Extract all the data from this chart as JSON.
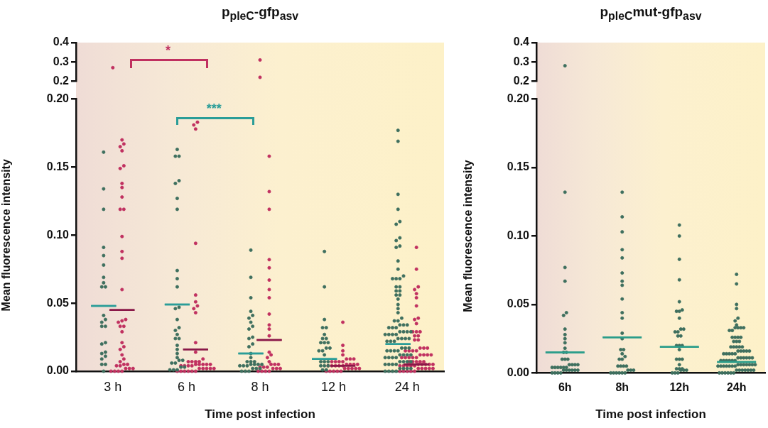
{
  "chart_data": [
    {
      "type": "scatter",
      "title": "p$_{pleC}$-gfp$_{asv}$",
      "categories": [
        "3 h",
        "6 h",
        "8 h",
        "12 h",
        "24 h"
      ],
      "ylim": [
        0.2,
        0.4
      ],
      "yticks": [
        0.2,
        0.3,
        0.4
      ],
      "tick_labels": "y",
      "marker": "circle",
      "grid": false,
      "legend": false,
      "annotations": [
        "*"
      ],
      "series": [
        {
          "color": "#c03060",
          "x": [
            "3 h",
            "8 h",
            "8 h"
          ],
          "values": [
            0.27,
            0.31,
            0.22
          ]
        }
      ]
    },
    {
      "type": "scatter",
      "xlabel": "Time post infection",
      "ylabel": "Mean fluorescence intensity",
      "categories": [
        "3 h",
        "6 h",
        "8 h",
        "12 h",
        "24 h"
      ],
      "ylim": [
        0,
        0.2
      ],
      "yticks": [
        {
          "value": 0,
          "label": "0.00"
        },
        {
          "value": 0.05,
          "label": "0.05"
        },
        {
          "value": 0.1,
          "label": "0.10"
        },
        {
          "value": 0.15,
          "label": "0.15"
        },
        {
          "value": 0.2,
          "label": "0.20"
        }
      ],
      "marker": "circle",
      "grid": false,
      "legend": false,
      "annotations": [
        "***"
      ],
      "series": [
        {
          "color": "#3e6f5e",
          "x": [
            "3 h",
            "3 h",
            "3 h",
            "3 h",
            "3 h",
            "3 h",
            "3 h",
            "3 h",
            "3 h",
            "3 h",
            "3 h",
            "3 h",
            "3 h",
            "3 h",
            "3 h",
            "3 h",
            "3 h",
            "3 h",
            "3 h",
            "3 h",
            "3 h",
            "3 h",
            "3 h",
            "3 h",
            "6 h",
            "6 h",
            "6 h",
            "6 h",
            "6 h",
            "6 h",
            "6 h",
            "6 h",
            "6 h",
            "6 h",
            "6 h",
            "6 h",
            "6 h",
            "6 h",
            "6 h",
            "6 h",
            "6 h",
            "6 h",
            "6 h",
            "6 h",
            "6 h",
            "6 h",
            "6 h",
            "6 h",
            "6 h",
            "6 h",
            "6 h",
            "6 h",
            "6 h",
            "6 h",
            "6 h",
            "8 h",
            "8 h",
            "8 h",
            "8 h",
            "8 h",
            "8 h",
            "8 h",
            "8 h",
            "8 h",
            "8 h",
            "8 h",
            "8 h",
            "8 h",
            "8 h",
            "8 h",
            "8 h",
            "8 h",
            "8 h",
            "8 h",
            "8 h",
            "8 h",
            "8 h",
            "8 h",
            "8 h",
            "8 h",
            "8 h",
            "8 h",
            "8 h",
            "8 h",
            "8 h",
            "8 h",
            "12 h",
            "12 h",
            "12 h",
            "12 h",
            "12 h",
            "12 h",
            "12 h",
            "12 h",
            "12 h",
            "12 h",
            "12 h",
            "12 h",
            "12 h",
            "12 h",
            "12 h",
            "12 h",
            "12 h",
            "12 h",
            "12 h",
            "12 h",
            "12 h",
            "12 h",
            "12 h",
            "12 h",
            "24 h",
            "24 h",
            "24 h",
            "24 h",
            "24 h",
            "24 h",
            "24 h",
            "24 h",
            "24 h",
            "24 h",
            "24 h",
            "24 h",
            "24 h",
            "24 h",
            "24 h",
            "24 h",
            "24 h",
            "24 h",
            "24 h",
            "24 h",
            "24 h",
            "24 h",
            "24 h",
            "24 h",
            "24 h",
            "24 h",
            "24 h",
            "24 h",
            "24 h",
            "24 h",
            "24 h",
            "24 h",
            "24 h",
            "24 h",
            "24 h",
            "24 h",
            "24 h",
            "24 h",
            "24 h",
            "24 h",
            "24 h",
            "24 h",
            "24 h",
            "24 h",
            "24 h",
            "24 h",
            "24 h",
            "24 h",
            "24 h",
            "24 h",
            "24 h",
            "24 h",
            "24 h",
            "24 h",
            "24 h",
            "24 h",
            "24 h",
            "24 h",
            "24 h",
            "24 h",
            "24 h",
            "24 h",
            "24 h",
            "24 h",
            "24 h",
            "24 h",
            "24 h",
            "24 h",
            "24 h",
            "24 h",
            "24 h",
            "24 h",
            "24 h",
            "24 h",
            "24 h",
            "24 h",
            "24 h",
            "24 h",
            "24 h",
            "24 h",
            "24 h"
          ],
          "values": [
            0.161,
            0.134,
            0.119,
            0.091,
            0.085,
            0.078,
            0.069,
            0.065,
            0.062,
            0.062,
            0.041,
            0.038,
            0.036,
            0.033,
            0.033,
            0.021,
            0.02,
            0.014,
            0.013,
            0.011,
            0.009,
            0.005,
            0.005,
            0,
            0.163,
            0.158,
            0.158,
            0.14,
            0.138,
            0.127,
            0.119,
            0.074,
            0.068,
            0.062,
            0.047,
            0.046,
            0.038,
            0.032,
            0.03,
            0.027,
            0.024,
            0.024,
            0.019,
            0.016,
            0.013,
            0.01,
            0.008,
            0.008,
            0.006,
            0.006,
            0.003,
            0.003,
            0.001,
            0.001,
            0.001,
            0.089,
            0.069,
            0.054,
            0.044,
            0.041,
            0.039,
            0.036,
            0.033,
            0.031,
            0.025,
            0.024,
            0.02,
            0.018,
            0.013,
            0.01,
            0.007,
            0.007,
            0.007,
            0.005,
            0.005,
            0.005,
            0.005,
            0.004,
            0.004,
            0.004,
            0.002,
            0.002,
            0.002,
            0,
            0,
            0,
            0.088,
            0.062,
            0.038,
            0.032,
            0.032,
            0.027,
            0.024,
            0.024,
            0.021,
            0.021,
            0.021,
            0.017,
            0.017,
            0.015,
            0.015,
            0.012,
            0.007,
            0.007,
            0.007,
            0.004,
            0.004,
            0.004,
            0.001,
            0.001,
            0.177,
            0.169,
            0.13,
            0.119,
            0.11,
            0.108,
            0.098,
            0.096,
            0.092,
            0.091,
            0.081,
            0.075,
            0.07,
            0.068,
            0.068,
            0.068,
            0.062,
            0.062,
            0.059,
            0.059,
            0.056,
            0.056,
            0.053,
            0.049,
            0.046,
            0.043,
            0.039,
            0.037,
            0.037,
            0.034,
            0.034,
            0.034,
            0.032,
            0.032,
            0.032,
            0.029,
            0.029,
            0.029,
            0.029,
            0.027,
            0.027,
            0.027,
            0.027,
            0.024,
            0.024,
            0.024,
            0.024,
            0.022,
            0.022,
            0.022,
            0.017,
            0.017,
            0.017,
            0.015,
            0.015,
            0.015,
            0.015,
            0.012,
            0.012,
            0.012,
            0.012,
            0.01,
            0.01,
            0.01,
            0.01,
            0.007,
            0.007,
            0.007,
            0.007,
            0.005,
            0.005,
            0.005,
            0.005,
            0.002,
            0.002,
            0.002,
            0.002,
            0,
            0,
            0,
            0
          ]
        },
        {
          "color": "#c03060",
          "x": [
            "3 h",
            "3 h",
            "3 h",
            "3 h",
            "3 h",
            "3 h",
            "3 h",
            "3 h",
            "3 h",
            "3 h",
            "3 h",
            "3 h",
            "3 h",
            "3 h",
            "3 h",
            "3 h",
            "3 h",
            "3 h",
            "3 h",
            "3 h",
            "3 h",
            "3 h",
            "3 h",
            "3 h",
            "3 h",
            "3 h",
            "3 h",
            "3 h",
            "3 h",
            "3 h",
            "3 h",
            "3 h",
            "3 h",
            "3 h",
            "3 h",
            "3 h",
            "3 h",
            "3 h",
            "6 h",
            "6 h",
            "6 h",
            "6 h",
            "6 h",
            "6 h",
            "6 h",
            "6 h",
            "6 h",
            "6 h",
            "6 h",
            "6 h",
            "6 h",
            "6 h",
            "6 h",
            "6 h",
            "6 h",
            "6 h",
            "6 h",
            "6 h",
            "6 h",
            "6 h",
            "6 h",
            "6 h",
            "6 h",
            "6 h",
            "6 h",
            "6 h",
            "6 h",
            "6 h",
            "6 h",
            "6 h",
            "6 h",
            "6 h",
            "6 h",
            "6 h",
            "8 h",
            "8 h",
            "8 h",
            "8 h",
            "8 h",
            "8 h",
            "8 h",
            "8 h",
            "8 h",
            "8 h",
            "8 h",
            "8 h",
            "8 h",
            "8 h",
            "8 h",
            "8 h",
            "8 h",
            "8 h",
            "8 h",
            "8 h",
            "8 h",
            "8 h",
            "8 h",
            "8 h",
            "8 h",
            "8 h",
            "8 h",
            "8 h",
            "8 h",
            "12 h",
            "12 h",
            "12 h",
            "12 h",
            "12 h",
            "12 h",
            "12 h",
            "12 h",
            "12 h",
            "12 h",
            "12 h",
            "12 h",
            "12 h",
            "12 h",
            "12 h",
            "12 h",
            "12 h",
            "12 h",
            "12 h",
            "12 h",
            "12 h",
            "12 h",
            "12 h",
            "12 h",
            "12 h",
            "12 h",
            "12 h",
            "12 h",
            "12 h",
            "12 h",
            "24 h",
            "24 h",
            "24 h",
            "24 h",
            "24 h",
            "24 h",
            "24 h",
            "24 h",
            "24 h",
            "24 h",
            "24 h",
            "24 h",
            "24 h",
            "24 h",
            "24 h",
            "24 h",
            "24 h",
            "24 h",
            "24 h",
            "24 h",
            "24 h",
            "24 h",
            "24 h",
            "24 h",
            "24 h",
            "24 h",
            "24 h",
            "24 h",
            "24 h",
            "24 h",
            "24 h",
            "24 h",
            "24 h",
            "24 h",
            "24 h",
            "24 h",
            "24 h",
            "24 h",
            "24 h",
            "24 h",
            "24 h",
            "24 h",
            "24 h",
            "24 h",
            "24 h",
            "24 h",
            "24 h",
            "24 h",
            "24 h",
            "24 h",
            "24 h",
            "24 h",
            "24 h",
            "24 h",
            "24 h",
            "24 h",
            "24 h",
            "24 h"
          ],
          "values": [
            0.17,
            0.167,
            0.165,
            0.162,
            0.151,
            0.149,
            0.138,
            0.135,
            0.128,
            0.119,
            0.119,
            0.099,
            0.088,
            0.083,
            0.06,
            0.038,
            0.037,
            0.036,
            0.033,
            0.033,
            0.029,
            0.021,
            0.018,
            0.016,
            0.012,
            0.009,
            0.007,
            0.005,
            0.005,
            0.004,
            0.004,
            0.002,
            0.002,
            0.002,
            0,
            0,
            0,
            0,
            0.183,
            0.181,
            0.178,
            0.094,
            0.056,
            0.051,
            0.048,
            0.046,
            0.043,
            0.021,
            0.014,
            0.009,
            0.007,
            0.007,
            0.007,
            0.007,
            0.005,
            0.005,
            0.005,
            0.005,
            0.005,
            0.004,
            0.004,
            0.004,
            0.004,
            0.002,
            0.002,
            0.002,
            0.002,
            0.002,
            0,
            0,
            0,
            0,
            0,
            0,
            0.158,
            0.132,
            0.119,
            0.082,
            0.076,
            0.067,
            0.06,
            0.054,
            0.042,
            0.034,
            0.031,
            0.026,
            0.014,
            0.012,
            0.01,
            0.007,
            0.005,
            0.005,
            0.005,
            0.003,
            0.003,
            0.003,
            0.002,
            0.002,
            0.002,
            0,
            0,
            0,
            0,
            0.036,
            0.019,
            0.015,
            0.012,
            0.009,
            0.009,
            0.009,
            0.007,
            0.007,
            0.007,
            0.007,
            0.005,
            0.005,
            0.005,
            0.005,
            0.004,
            0.004,
            0.004,
            0.004,
            0.004,
            0.002,
            0.002,
            0.002,
            0.002,
            0.002,
            0,
            0,
            0,
            0,
            0,
            0.091,
            0.075,
            0.062,
            0.06,
            0.057,
            0.054,
            0.048,
            0.039,
            0.038,
            0.035,
            0.029,
            0.029,
            0.029,
            0.026,
            0.026,
            0.023,
            0.023,
            0.017,
            0.017,
            0.017,
            0.015,
            0.015,
            0.015,
            0.015,
            0.012,
            0.012,
            0.012,
            0.012,
            0.01,
            0.01,
            0.01,
            0.01,
            0.01,
            0.007,
            0.007,
            0.007,
            0.007,
            0.007,
            0.005,
            0.005,
            0.005,
            0.005,
            0.005,
            0.004,
            0.004,
            0.004,
            0.004,
            0.004,
            0.002,
            0.002,
            0.002,
            0.002,
            0.002,
            0,
            0,
            0,
            0,
            0
          ]
        },
        {
          "type": "box",
          "color": "#2a9d98",
          "boxes": [
            {
              "low": 0.048,
              "q1": 0.048,
              "median": 0.048,
              "q3": 0.048,
              "high": 0.048
            },
            {
              "low": 0.049,
              "q1": 0.049,
              "median": 0.049,
              "q3": 0.049,
              "high": 0.049
            },
            {
              "low": 0.013,
              "q1": 0.013,
              "median": 0.013,
              "q3": 0.013,
              "high": 0.013
            },
            {
              "low": 0.009,
              "q1": 0.009,
              "median": 0.009,
              "q3": 0.009,
              "high": 0.009
            },
            {
              "low": 0.02,
              "q1": 0.02,
              "median": 0.02,
              "q3": 0.02,
              "high": 0.02
            }
          ]
        },
        {
          "type": "box",
          "color": "#8a1848",
          "boxes": [
            {
              "low": 0.045,
              "q1": 0.045,
              "median": 0.045,
              "q3": 0.045,
              "high": 0.045
            },
            {
              "low": 0.016,
              "q1": 0.016,
              "median": 0.016,
              "q3": 0.016,
              "high": 0.016
            },
            {
              "low": 0.023,
              "q1": 0.023,
              "median": 0.023,
              "q3": 0.023,
              "high": 0.023
            },
            {
              "low": 0.004,
              "q1": 0.004,
              "median": 0.004,
              "q3": 0.004,
              "high": 0.004
            },
            {
              "low": 0.005,
              "q1": 0.005,
              "median": 0.005,
              "q3": 0.005,
              "high": 0.005
            }
          ]
        }
      ]
    },
    {
      "type": "scatter",
      "title": "p$_{pleC}$mut-gfp$_{asv}$",
      "categories": [
        "6h",
        "8h",
        "12h",
        "24h"
      ],
      "ylim": [
        0.2,
        0.4
      ],
      "yticks": [
        0.2,
        0.3,
        0.4
      ],
      "tick_labels": "y",
      "marker": "circle",
      "grid": false,
      "legend": false,
      "series": [
        {
          "color": "#3e6f5e",
          "x": [
            "6h"
          ],
          "values": [
            0.28
          ]
        }
      ]
    },
    {
      "type": "scatter",
      "xlabel": "Time post infection",
      "ylabel": "Mean fluorescence intensity",
      "categories": [
        "6h",
        "8h",
        "12h",
        "24h"
      ],
      "ylim": [
        0,
        0.2
      ],
      "yticks": [
        {
          "value": 0,
          "label": "0.00"
        },
        {
          "value": 0.05,
          "label": "0.05"
        },
        {
          "value": 0.1,
          "label": "0.10"
        },
        {
          "value": 0.15,
          "label": "0.15"
        },
        {
          "value": 0.2,
          "label": "0.20"
        }
      ],
      "marker": "circle",
      "grid": false,
      "legend": false,
      "series": [
        {
          "color": "#3e6f5e",
          "x": [
            "6h",
            "6h",
            "6h",
            "6h",
            "6h",
            "6h",
            "6h",
            "6h",
            "6h",
            "6h",
            "6h",
            "6h",
            "6h",
            "6h",
            "6h",
            "6h",
            "6h",
            "6h",
            "6h",
            "6h",
            "6h",
            "6h",
            "6h",
            "6h",
            "6h",
            "6h",
            "6h",
            "6h",
            "6h",
            "6h",
            "6h",
            "6h",
            "6h",
            "6h",
            "6h",
            "8h",
            "8h",
            "8h",
            "8h",
            "8h",
            "8h",
            "8h",
            "8h",
            "8h",
            "8h",
            "8h",
            "8h",
            "8h",
            "8h",
            "8h",
            "8h",
            "8h",
            "8h",
            "8h",
            "8h",
            "8h",
            "8h",
            "8h",
            "8h",
            "8h",
            "8h",
            "8h",
            "8h",
            "8h",
            "8h",
            "8h",
            "8h",
            "12h",
            "12h",
            "12h",
            "12h",
            "12h",
            "12h",
            "12h",
            "12h",
            "12h",
            "12h",
            "12h",
            "12h",
            "12h",
            "12h",
            "12h",
            "12h",
            "12h",
            "12h",
            "12h",
            "12h",
            "12h",
            "12h",
            "12h",
            "12h",
            "12h",
            "12h",
            "12h",
            "12h",
            "12h",
            "12h",
            "12h",
            "12h",
            "24h",
            "24h",
            "24h",
            "24h",
            "24h",
            "24h",
            "24h",
            "24h",
            "24h",
            "24h",
            "24h",
            "24h",
            "24h",
            "24h",
            "24h",
            "24h",
            "24h",
            "24h",
            "24h",
            "24h",
            "24h",
            "24h",
            "24h",
            "24h",
            "24h",
            "24h",
            "24h",
            "24h",
            "24h",
            "24h",
            "24h",
            "24h",
            "24h",
            "24h",
            "24h",
            "24h",
            "24h",
            "24h",
            "24h",
            "24h",
            "24h",
            "24h",
            "24h",
            "24h",
            "24h",
            "24h",
            "24h",
            "24h",
            "24h",
            "24h",
            "24h",
            "24h",
            "24h",
            "24h",
            "24h",
            "24h",
            "24h",
            "24h",
            "24h",
            "24h",
            "24h",
            "24h",
            "24h",
            "24h",
            "24h",
            "24h",
            "24h",
            "24h",
            "24h",
            "24h",
            "24h",
            "24h",
            "24h",
            "24h"
          ],
          "values": [
            0.132,
            0.077,
            0.067,
            0.044,
            0.042,
            0.032,
            0.028,
            0.025,
            0.022,
            0.018,
            0.015,
            0.015,
            0.01,
            0.01,
            0.01,
            0.006,
            0.006,
            0.006,
            0.006,
            0.004,
            0.004,
            0.004,
            0.004,
            0.004,
            0.004,
            0.002,
            0.002,
            0.002,
            0.002,
            0.002,
            0.002,
            0,
            0,
            0,
            0,
            0.132,
            0.114,
            0.103,
            0.09,
            0.084,
            0.073,
            0.067,
            0.064,
            0.054,
            0.044,
            0.04,
            0.029,
            0.025,
            0.017,
            0.017,
            0.014,
            0.012,
            0.01,
            0.01,
            0.005,
            0.005,
            0.005,
            0.005,
            0.002,
            0.002,
            0.002,
            0,
            0,
            0,
            0,
            0,
            0,
            0.108,
            0.1,
            0.083,
            0.068,
            0.052,
            0.046,
            0.045,
            0.045,
            0.04,
            0.032,
            0.032,
            0.03,
            0.03,
            0.027,
            0.027,
            0.02,
            0.02,
            0.02,
            0.017,
            0.01,
            0.01,
            0.01,
            0.006,
            0.003,
            0.003,
            0.003,
            0.002,
            0.002,
            0.002,
            0,
            0,
            0,
            0.072,
            0.065,
            0.05,
            0.047,
            0.04,
            0.038,
            0.035,
            0.033,
            0.033,
            0.033,
            0.033,
            0.031,
            0.031,
            0.026,
            0.026,
            0.026,
            0.026,
            0.023,
            0.023,
            0.023,
            0.019,
            0.019,
            0.019,
            0.019,
            0.019,
            0.016,
            0.016,
            0.016,
            0.016,
            0.016,
            0.014,
            0.014,
            0.014,
            0.014,
            0.014,
            0.011,
            0.011,
            0.011,
            0.011,
            0.011,
            0.011,
            0.009,
            0.009,
            0.009,
            0.009,
            0.009,
            0.009,
            0.006,
            0.006,
            0.006,
            0.006,
            0.006,
            0.006,
            0.006,
            0.005,
            0.005,
            0.005,
            0.005,
            0.005,
            0.005,
            0.005,
            0.002,
            0.002,
            0.002,
            0.002,
            0.002,
            0.002,
            0.002,
            0,
            0,
            0,
            0,
            0,
            0
          ]
        },
        {
          "type": "box",
          "color": "#2a9d8a",
          "boxes": [
            {
              "low": 0.015,
              "q1": 0.015,
              "median": 0.015,
              "q3": 0.015,
              "high": 0.015
            },
            {
              "low": 0.026,
              "q1": 0.026,
              "median": 0.026,
              "q3": 0.026,
              "high": 0.026
            },
            {
              "low": 0.019,
              "q1": 0.019,
              "median": 0.019,
              "q3": 0.019,
              "high": 0.019
            },
            {
              "low": 0.008,
              "q1": 0.008,
              "median": 0.008,
              "q3": 0.008,
              "high": 0.008
            }
          ]
        }
      ]
    }
  ]
}
